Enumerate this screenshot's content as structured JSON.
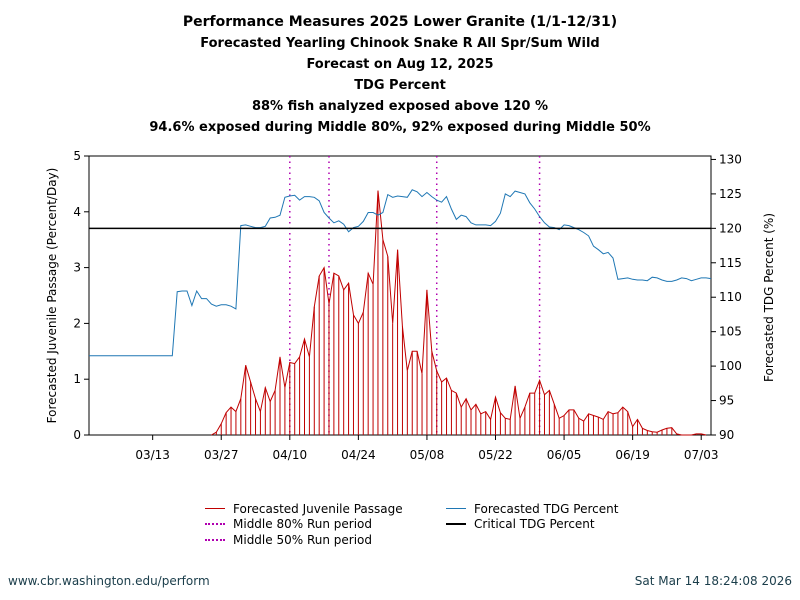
{
  "header": {
    "title": "Performance Measures 2025 Lower Granite (1/1-12/31)",
    "line2": "Forecasted Yearling Chinook Snake R All Spr/Sum Wild",
    "line3": "Forecast on Aug 12, 2025",
    "line4": "TDG Percent",
    "line5": "88% fish analyzed exposed above 120 %",
    "line6": "94.6% exposed during Middle 80%, 92% exposed during Middle 50%"
  },
  "footer": {
    "url": "www.cbr.washington.edu/perform",
    "timestamp": "Sat Mar 14 18:24:08 2026"
  },
  "legend": {
    "passage": "Forecasted Juvenile Passage",
    "tdg": "Forecasted TDG Percent",
    "mid80": "Middle 80% Run period",
    "critical": "Critical TDG Percent",
    "mid50": "Middle 50% Run period"
  },
  "colors": {
    "passage": "#c00000",
    "tdg": "#1f77b4",
    "mid80": "#b000b0",
    "mid50": "#b000b0",
    "critical": "#000000"
  },
  "chart_data": {
    "type": "line",
    "xlabel": "",
    "ylabel_left": "Forecasted Juvenile Passage (Percent/Day)",
    "ylabel_right": "Forecasted TDG Percent (%)",
    "x_start": "02/28",
    "x_end": "07/05",
    "xlim_days": [
      0,
      127
    ],
    "ylim_left": [
      0,
      5
    ],
    "ylim_right": [
      90,
      130.5
    ],
    "yticks_left": [
      0,
      1,
      2,
      3,
      4,
      5
    ],
    "yticks_right": [
      90,
      95,
      100,
      105,
      110,
      115,
      120,
      125,
      130
    ],
    "xticks": [
      {
        "label": "03/13",
        "day": 13
      },
      {
        "label": "03/27",
        "day": 27
      },
      {
        "label": "04/10",
        "day": 41
      },
      {
        "label": "04/24",
        "day": 55
      },
      {
        "label": "05/08",
        "day": 69
      },
      {
        "label": "05/22",
        "day": 83
      },
      {
        "label": "06/05",
        "day": 97
      },
      {
        "label": "06/19",
        "day": 111
      },
      {
        "label": "07/03",
        "day": 125
      }
    ],
    "critical_tdg": 120,
    "middle_80_days": [
      41,
      71
    ],
    "middle_50_days": [
      49,
      92
    ],
    "series": [
      {
        "name": "Forecasted Juvenile Passage",
        "axis": "left",
        "style": "line-with-drops",
        "points": [
          [
            25,
            0
          ],
          [
            26,
            0.05
          ],
          [
            27,
            0.2
          ],
          [
            28,
            0.4
          ],
          [
            29,
            0.5
          ],
          [
            30,
            0.42
          ],
          [
            31,
            0.65
          ],
          [
            32,
            1.25
          ],
          [
            33,
            0.95
          ],
          [
            34,
            0.65
          ],
          [
            35,
            0.42
          ],
          [
            36,
            0.85
          ],
          [
            37,
            0.6
          ],
          [
            38,
            0.8
          ],
          [
            39,
            1.4
          ],
          [
            40,
            0.85
          ],
          [
            41,
            1.3
          ],
          [
            42,
            1.28
          ],
          [
            43,
            1.4
          ],
          [
            44,
            1.72
          ],
          [
            45,
            1.4
          ],
          [
            46,
            2.3
          ],
          [
            47,
            2.85
          ],
          [
            48,
            3.0
          ],
          [
            49,
            2.35
          ],
          [
            50,
            2.9
          ],
          [
            51,
            2.85
          ],
          [
            52,
            2.6
          ],
          [
            53,
            2.72
          ],
          [
            54,
            2.15
          ],
          [
            55,
            2.0
          ],
          [
            56,
            2.2
          ],
          [
            57,
            2.9
          ],
          [
            58,
            2.7
          ],
          [
            59,
            4.38
          ],
          [
            60,
            3.5
          ],
          [
            61,
            3.2
          ],
          [
            62,
            2.0
          ],
          [
            63,
            3.32
          ],
          [
            64,
            1.95
          ],
          [
            65,
            1.15
          ],
          [
            66,
            1.5
          ],
          [
            67,
            1.5
          ],
          [
            68,
            1.1
          ],
          [
            69,
            2.6
          ],
          [
            70,
            1.5
          ],
          [
            71,
            1.15
          ],
          [
            72,
            0.95
          ],
          [
            73,
            1.02
          ],
          [
            74,
            0.8
          ],
          [
            75,
            0.75
          ],
          [
            76,
            0.5
          ],
          [
            77,
            0.65
          ],
          [
            78,
            0.45
          ],
          [
            79,
            0.55
          ],
          [
            80,
            0.38
          ],
          [
            81,
            0.42
          ],
          [
            82,
            0.28
          ],
          [
            83,
            0.68
          ],
          [
            84,
            0.4
          ],
          [
            85,
            0.3
          ],
          [
            86,
            0.28
          ],
          [
            87,
            0.88
          ],
          [
            88,
            0.3
          ],
          [
            89,
            0.5
          ],
          [
            90,
            0.75
          ],
          [
            91,
            0.75
          ],
          [
            92,
            0.98
          ],
          [
            93,
            0.72
          ],
          [
            94,
            0.8
          ],
          [
            95,
            0.55
          ],
          [
            96,
            0.3
          ],
          [
            97,
            0.35
          ],
          [
            98,
            0.45
          ],
          [
            99,
            0.45
          ],
          [
            100,
            0.3
          ],
          [
            101,
            0.25
          ],
          [
            102,
            0.38
          ],
          [
            103,
            0.35
          ],
          [
            104,
            0.32
          ],
          [
            105,
            0.28
          ],
          [
            106,
            0.42
          ],
          [
            107,
            0.38
          ],
          [
            108,
            0.4
          ],
          [
            109,
            0.5
          ],
          [
            110,
            0.42
          ],
          [
            111,
            0.15
          ],
          [
            112,
            0.28
          ],
          [
            113,
            0.12
          ],
          [
            114,
            0.08
          ],
          [
            115,
            0.06
          ],
          [
            116,
            0.05
          ],
          [
            117,
            0.09
          ],
          [
            118,
            0.12
          ],
          [
            119,
            0.13
          ],
          [
            120,
            0.02
          ],
          [
            121,
            0
          ],
          [
            122,
            0
          ],
          [
            123,
            0
          ],
          [
            124,
            0.02
          ],
          [
            125,
            0.02
          ],
          [
            126,
            0
          ]
        ]
      },
      {
        "name": "Forecasted TDG Percent",
        "axis": "right",
        "style": "line",
        "points": [
          [
            0,
            101.5
          ],
          [
            5,
            101.5
          ],
          [
            10,
            101.5
          ],
          [
            15,
            101.5
          ],
          [
            17,
            101.5
          ],
          [
            18,
            110.8
          ],
          [
            19,
            110.9
          ],
          [
            20,
            110.9
          ],
          [
            21,
            108.8
          ],
          [
            22,
            110.9
          ],
          [
            23,
            109.8
          ],
          [
            24,
            109.8
          ],
          [
            25,
            109
          ],
          [
            26,
            108.7
          ],
          [
            27,
            108.9
          ],
          [
            28,
            108.9
          ],
          [
            29,
            108.7
          ],
          [
            30,
            108.3
          ],
          [
            31,
            120.4
          ],
          [
            32,
            120.5
          ],
          [
            33,
            120.3
          ],
          [
            34,
            120.1
          ],
          [
            35,
            120.1
          ],
          [
            36,
            120.3
          ],
          [
            37,
            121.5
          ],
          [
            38,
            121.6
          ],
          [
            39,
            121.9
          ],
          [
            40,
            124.5
          ],
          [
            41,
            124.7
          ],
          [
            42,
            124.8
          ],
          [
            43,
            124.1
          ],
          [
            44,
            124.6
          ],
          [
            45,
            124.6
          ],
          [
            46,
            124.5
          ],
          [
            47,
            124
          ],
          [
            48,
            122.3
          ],
          [
            49,
            121.5
          ],
          [
            50,
            120.8
          ],
          [
            51,
            121.1
          ],
          [
            52,
            120.6
          ],
          [
            53,
            119.5
          ],
          [
            54,
            120.1
          ],
          [
            55,
            120.3
          ],
          [
            56,
            121
          ],
          [
            57,
            122.3
          ],
          [
            58,
            122.3
          ],
          [
            59,
            121.9
          ],
          [
            60,
            122.3
          ],
          [
            61,
            124.9
          ],
          [
            62,
            124.5
          ],
          [
            63,
            124.7
          ],
          [
            64,
            124.6
          ],
          [
            65,
            124.5
          ],
          [
            66,
            125.6
          ],
          [
            67,
            125.3
          ],
          [
            68,
            124.6
          ],
          [
            69,
            125.2
          ],
          [
            70,
            124.6
          ],
          [
            71,
            124.1
          ],
          [
            72,
            123.8
          ],
          [
            73,
            124.6
          ],
          [
            74,
            122.8
          ],
          [
            75,
            121.3
          ],
          [
            76,
            121.9
          ],
          [
            77,
            121.7
          ],
          [
            78,
            120.8
          ],
          [
            79,
            120.5
          ],
          [
            80,
            120.5
          ],
          [
            81,
            120.5
          ],
          [
            82,
            120.4
          ],
          [
            83,
            121
          ],
          [
            84,
            122.2
          ],
          [
            85,
            125
          ],
          [
            86,
            124.6
          ],
          [
            87,
            125.4
          ],
          [
            88,
            125.2
          ],
          [
            89,
            125
          ],
          [
            90,
            123.7
          ],
          [
            91,
            122.8
          ],
          [
            92,
            121.7
          ],
          [
            93,
            120.8
          ],
          [
            94,
            120.2
          ],
          [
            95,
            120.1
          ],
          [
            96,
            119.8
          ],
          [
            97,
            120.5
          ],
          [
            98,
            120.4
          ],
          [
            99,
            120.1
          ],
          [
            100,
            119.8
          ],
          [
            101,
            119.4
          ],
          [
            102,
            118.9
          ],
          [
            103,
            117.4
          ],
          [
            104,
            116.9
          ],
          [
            105,
            116.3
          ],
          [
            106,
            116.5
          ],
          [
            107,
            115.7
          ],
          [
            108,
            112.6
          ],
          [
            109,
            112.7
          ],
          [
            110,
            112.8
          ],
          [
            111,
            112.6
          ],
          [
            112,
            112.5
          ],
          [
            113,
            112.5
          ],
          [
            114,
            112.4
          ],
          [
            115,
            112.9
          ],
          [
            116,
            112.8
          ],
          [
            117,
            112.5
          ],
          [
            118,
            112.3
          ],
          [
            119,
            112.3
          ],
          [
            120,
            112.5
          ],
          [
            121,
            112.8
          ],
          [
            122,
            112.7
          ],
          [
            123,
            112.4
          ],
          [
            124,
            112.6
          ],
          [
            125,
            112.8
          ],
          [
            126,
            112.8
          ],
          [
            127,
            112.7
          ]
        ]
      }
    ]
  }
}
